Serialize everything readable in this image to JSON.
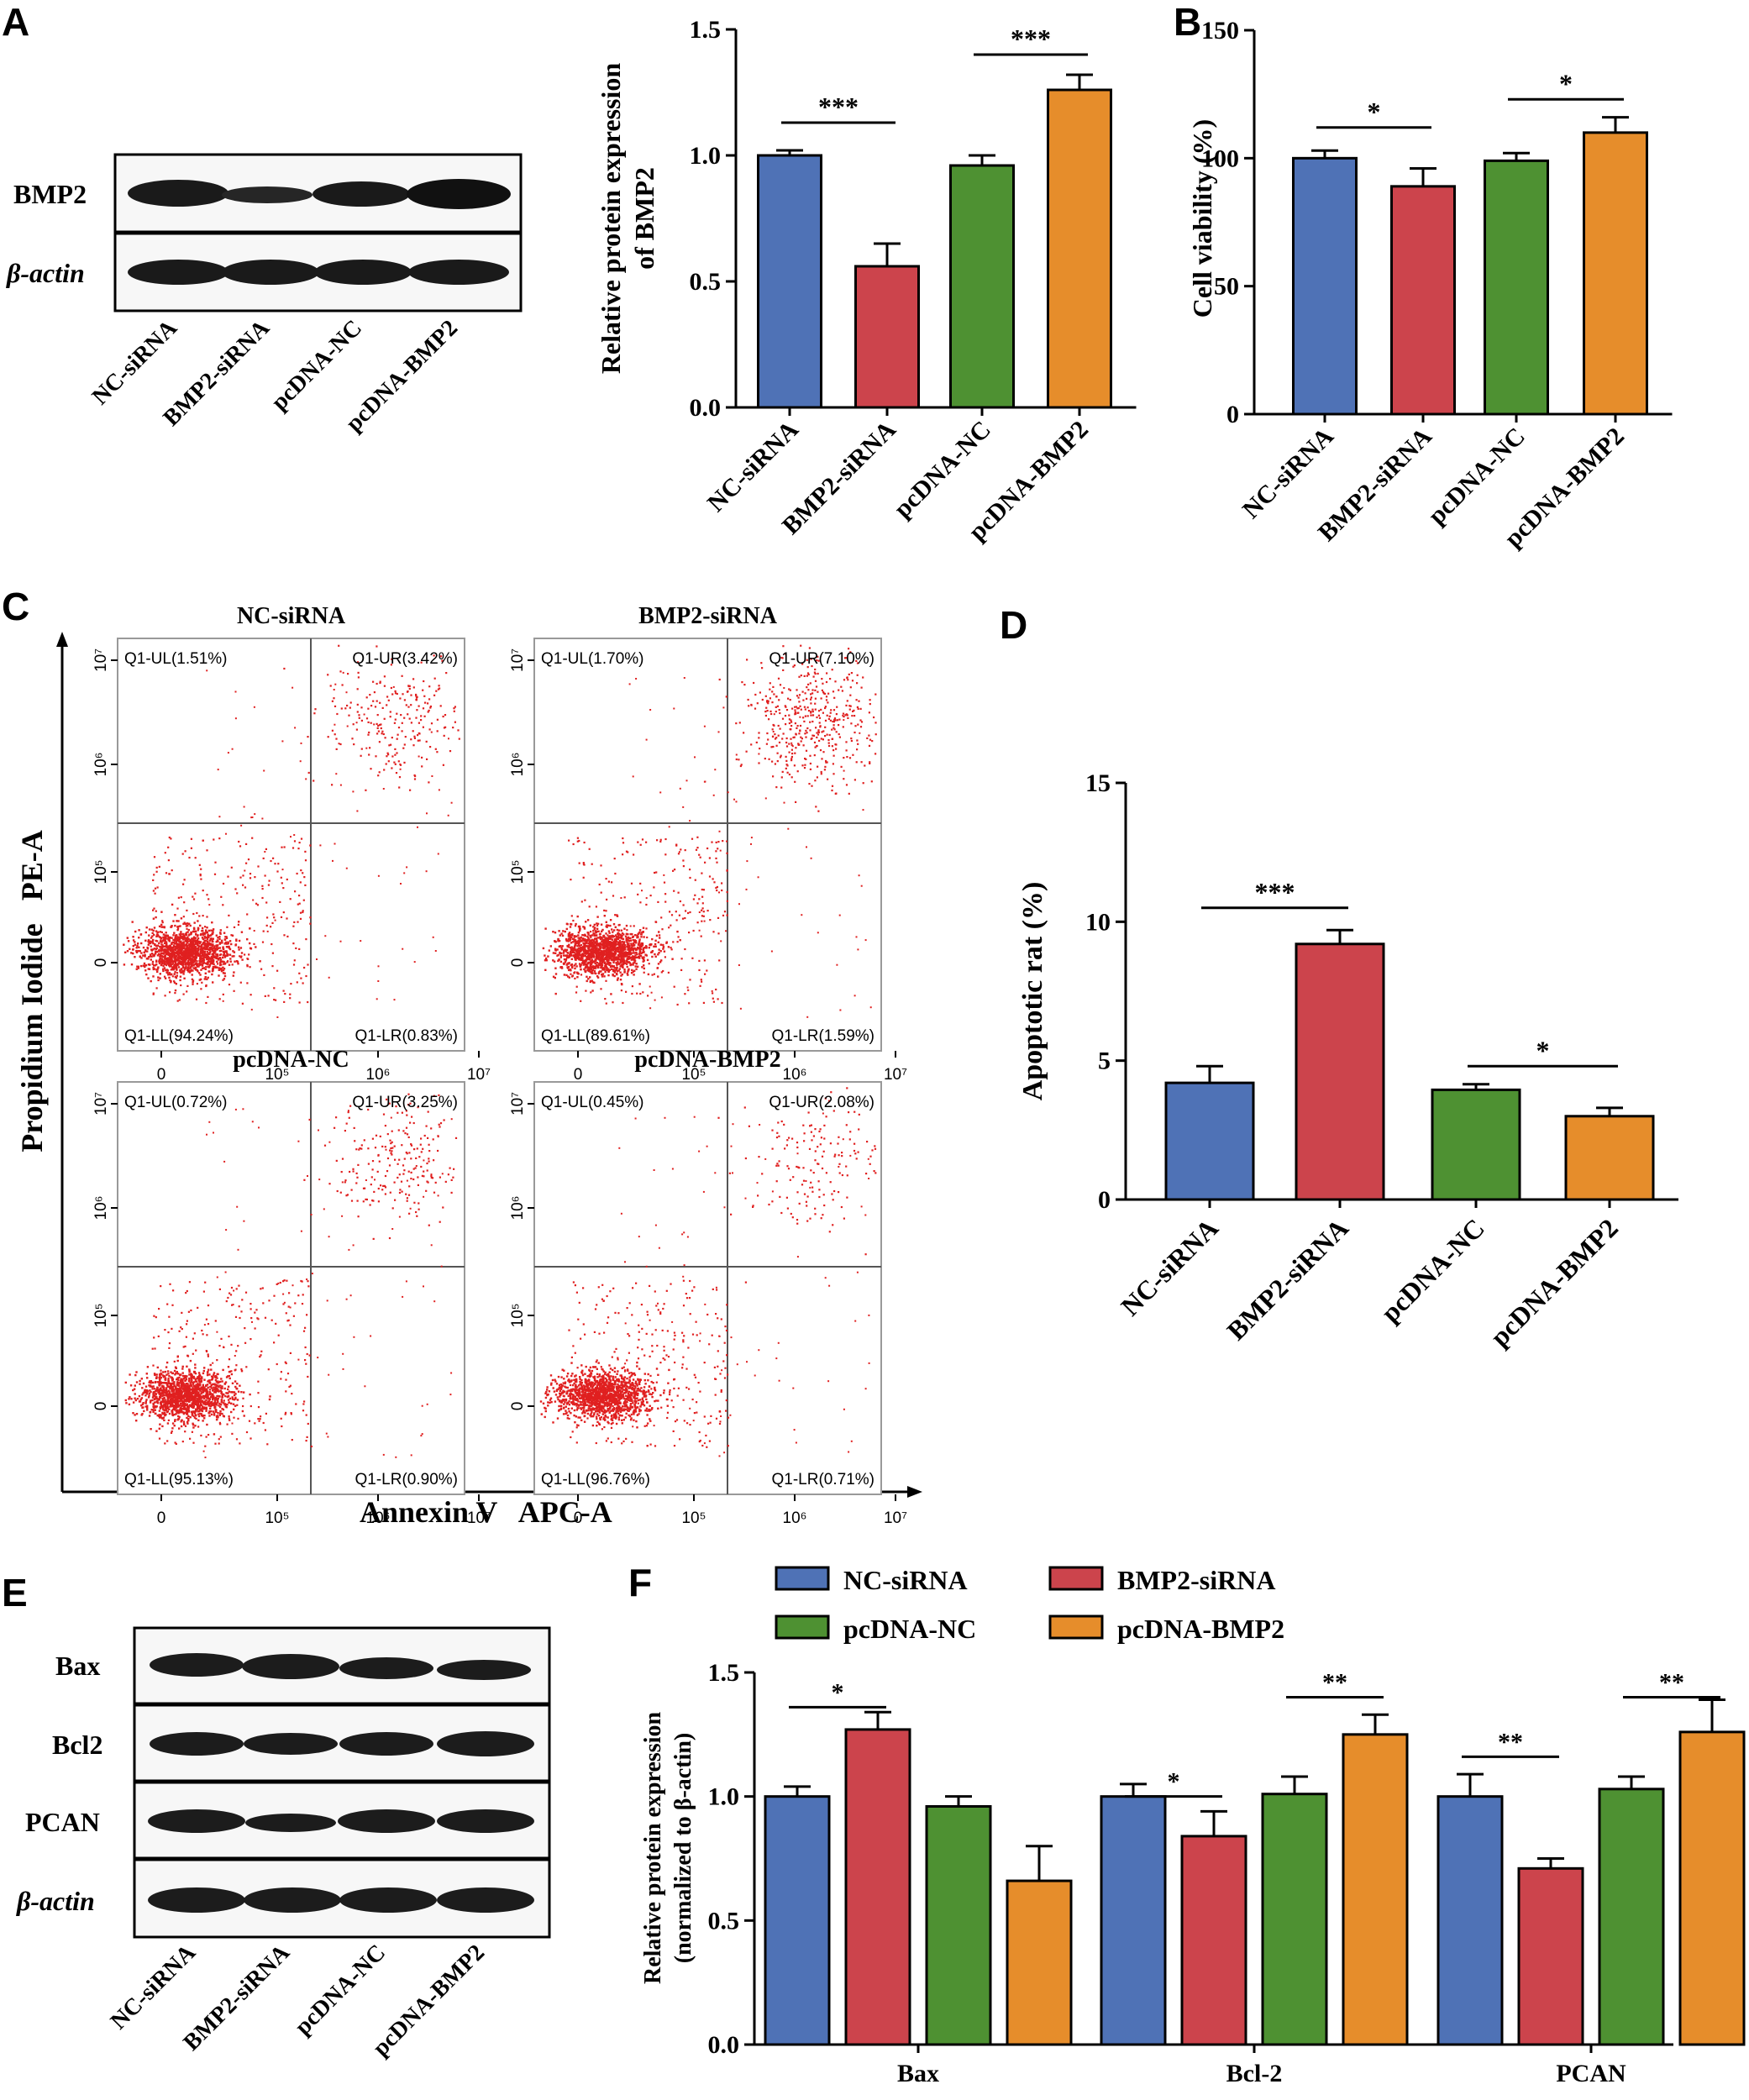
{
  "colors": {
    "nc": "#4f72b6",
    "bmp2": "#cc444c",
    "pcdna_nc": "#4e9132",
    "pcdna_bmp2": "#e68d2b",
    "dot": "#e02020"
  },
  "panels": {
    "A": "A",
    "B": "B",
    "C": "C",
    "D": "D",
    "E": "E",
    "F": "F"
  },
  "blotA": {
    "rows": [
      "BMP2",
      "β-actin"
    ],
    "lanes": [
      "NC-siRNA",
      "BMP2-siRNA",
      "pcDNA-NC",
      "pcDNA-BMP2"
    ]
  },
  "blotE": {
    "rows": [
      "Bax",
      "Bcl2",
      "PCAN",
      "β-actin"
    ],
    "lanes": [
      "NC-siRNA",
      "BMP2-siRNA",
      "pcDNA-NC",
      "pcDNA-BMP2"
    ]
  },
  "flow": {
    "xlabel": "Annexin V   APC-A",
    "ylabel": "Propidium Iodide   PE-A",
    "xticks": [
      "0",
      "10⁵",
      "10⁶",
      "10⁷"
    ],
    "yticks": [
      "0",
      "10⁵",
      "10⁶",
      "10⁷"
    ],
    "plots": [
      {
        "title": "NC-siRNA",
        "ul": "Q1-UL(1.51%)",
        "ur": "Q1-UR(3.42%)",
        "ll": "Q1-LL(94.24%)",
        "lr": "Q1-LR(0.83%)"
      },
      {
        "title": "BMP2-siRNA",
        "ul": "Q1-UL(1.70%)",
        "ur": "Q1-UR(7.10%)",
        "ll": "Q1-LL(89.61%)",
        "lr": "Q1-LR(1.59%)"
      },
      {
        "title": "pcDNA-NC",
        "ul": "Q1-UL(0.72%)",
        "ur": "Q1-UR(3.25%)",
        "ll": "Q1-LL(95.13%)",
        "lr": "Q1-LR(0.90%)"
      },
      {
        "title": "pcDNA-BMP2",
        "ul": "Q1-UL(0.45%)",
        "ur": "Q1-UR(2.08%)",
        "ll": "Q1-LL(96.76%)",
        "lr": "Q1-LR(0.71%)"
      }
    ]
  },
  "chart_data": [
    {
      "id": "A",
      "type": "bar",
      "ylabel_lines": [
        "Relative protein expression",
        "of BMP2"
      ],
      "categories": [
        "NC-siRNA",
        "BMP2-siRNA",
        "pcDNA-NC",
        "pcDNA-BMP2"
      ],
      "values": [
        1.0,
        0.56,
        0.96,
        1.26
      ],
      "errors": [
        0.02,
        0.09,
        0.04,
        0.06
      ],
      "ylim": [
        0,
        1.5
      ],
      "yticks": [
        "0.0",
        "0.5",
        "1.0",
        "1.5"
      ],
      "ytick_values": [
        0,
        0.5,
        1.0,
        1.5
      ],
      "significance": [
        {
          "from": 0,
          "to": 1,
          "y": 1.13,
          "label": "***"
        },
        {
          "from": 2,
          "to": 3,
          "y": 1.4,
          "label": "***"
        }
      ]
    },
    {
      "id": "B",
      "type": "bar",
      "ylabel_lines": [
        "Cell viability (%)"
      ],
      "categories": [
        "NC-siRNA",
        "BMP2-siRNA",
        "pcDNA-NC",
        "pcDNA-BMP2"
      ],
      "values": [
        100,
        89,
        99,
        110
      ],
      "errors": [
        3,
        7,
        3,
        6
      ],
      "ylim": [
        0,
        150
      ],
      "yticks": [
        "0",
        "50",
        "100",
        "150"
      ],
      "ytick_values": [
        0,
        50,
        100,
        150
      ],
      "significance": [
        {
          "from": 0,
          "to": 1,
          "y": 112,
          "label": "*"
        },
        {
          "from": 2,
          "to": 3,
          "y": 123,
          "label": "*"
        }
      ]
    },
    {
      "id": "D",
      "type": "bar",
      "ylabel_lines": [
        "Apoptotic rat (%)"
      ],
      "categories": [
        "NC-siRNA",
        "BMP2-siRNA",
        "pcDNA-NC",
        "pcDNA-BMP2"
      ],
      "values": [
        4.2,
        9.2,
        3.95,
        3.0
      ],
      "errors": [
        0.6,
        0.5,
        0.2,
        0.3
      ],
      "ylim": [
        0,
        15
      ],
      "yticks": [
        "0",
        "5",
        "10",
        "15"
      ],
      "ytick_values": [
        0,
        5,
        10,
        15
      ],
      "significance": [
        {
          "from": 0,
          "to": 1,
          "y": 10.5,
          "label": "***"
        },
        {
          "from": 2,
          "to": 3,
          "y": 4.8,
          "label": "*"
        }
      ]
    },
    {
      "id": "F",
      "type": "bar",
      "ylabel_lines": [
        "Relative protein expression",
        "(normalized to β-actin)"
      ],
      "categories": [
        "Bax",
        "Bcl-2",
        "PCAN"
      ],
      "series": [
        {
          "name": "NC-siRNA",
          "values": [
            1.0,
            1.0,
            1.0
          ],
          "errors": [
            0.04,
            0.05,
            0.09
          ]
        },
        {
          "name": "BMP2-siRNA",
          "values": [
            1.27,
            0.84,
            0.71
          ],
          "errors": [
            0.07,
            0.1,
            0.04
          ]
        },
        {
          "name": "pcDNA-NC",
          "values": [
            0.96,
            1.01,
            1.03
          ],
          "errors": [
            0.04,
            0.07,
            0.05
          ]
        },
        {
          "name": "pcDNA-BMP2",
          "values": [
            0.66,
            1.25,
            1.26
          ],
          "errors": [
            0.14,
            0.08,
            0.13
          ]
        }
      ],
      "ylim": [
        0,
        1.5
      ],
      "yticks": [
        "0.0",
        "0.5",
        "1.0",
        "1.5"
      ],
      "ytick_values": [
        0,
        0.5,
        1.0,
        1.5
      ],
      "significance": [
        {
          "group": 0,
          "from": 0,
          "to": 1,
          "y": 1.36,
          "label": "*"
        },
        {
          "group": 1,
          "from": 0,
          "to": 1,
          "y": 1.0,
          "label": "*"
        },
        {
          "group": 1,
          "from": 2,
          "to": 3,
          "y": 1.4,
          "label": "**"
        },
        {
          "group": 2,
          "from": 0,
          "to": 1,
          "y": 1.16,
          "label": "**"
        },
        {
          "group": 2,
          "from": 2,
          "to": 3,
          "y": 1.4,
          "label": "**"
        }
      ]
    }
  ]
}
